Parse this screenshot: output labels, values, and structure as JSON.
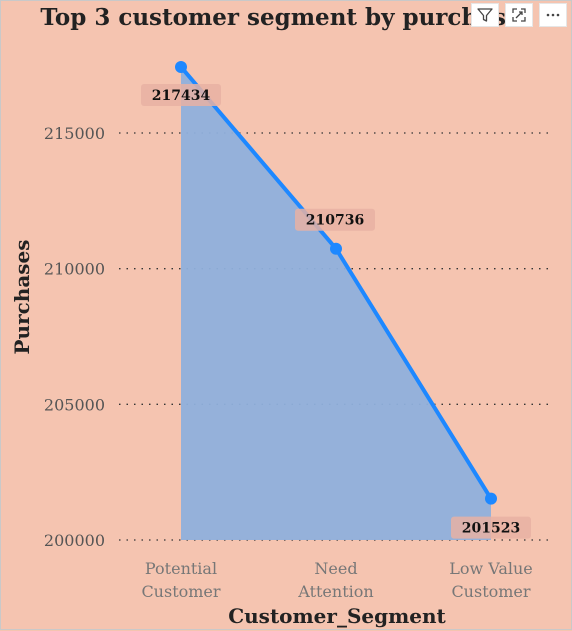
{
  "chart_data": {
    "type": "area",
    "title": "Top 3 customer segment by purchases",
    "xlabel": "Customer_Segment",
    "ylabel": "Purchases",
    "categories": [
      "Potential Customer",
      "Need Attention",
      "Low Value Customer"
    ],
    "category_lines": [
      [
        "Potential",
        "Customer"
      ],
      [
        "Need",
        "Attention"
      ],
      [
        "Low Value",
        "Customer"
      ]
    ],
    "series": [
      {
        "values": [
          217434,
          210736,
          201523
        ]
      }
    ],
    "data_labels": [
      "217434",
      "210736",
      "201523"
    ],
    "yticks": [
      200000,
      205000,
      210000,
      215000
    ],
    "ytick_labels": [
      "200000",
      "205000",
      "210000",
      "215000"
    ],
    "ylim": [
      200000,
      218000
    ],
    "grid": true,
    "legend": "none",
    "colors": {
      "line": "#1e88ff",
      "area": "#8fb0dc",
      "background": "#f5c4b0",
      "label_box": "#e8b2a3"
    }
  },
  "toolbar": {
    "icons": [
      "filter-icon",
      "focus-mode-icon",
      "more-options-icon"
    ]
  }
}
